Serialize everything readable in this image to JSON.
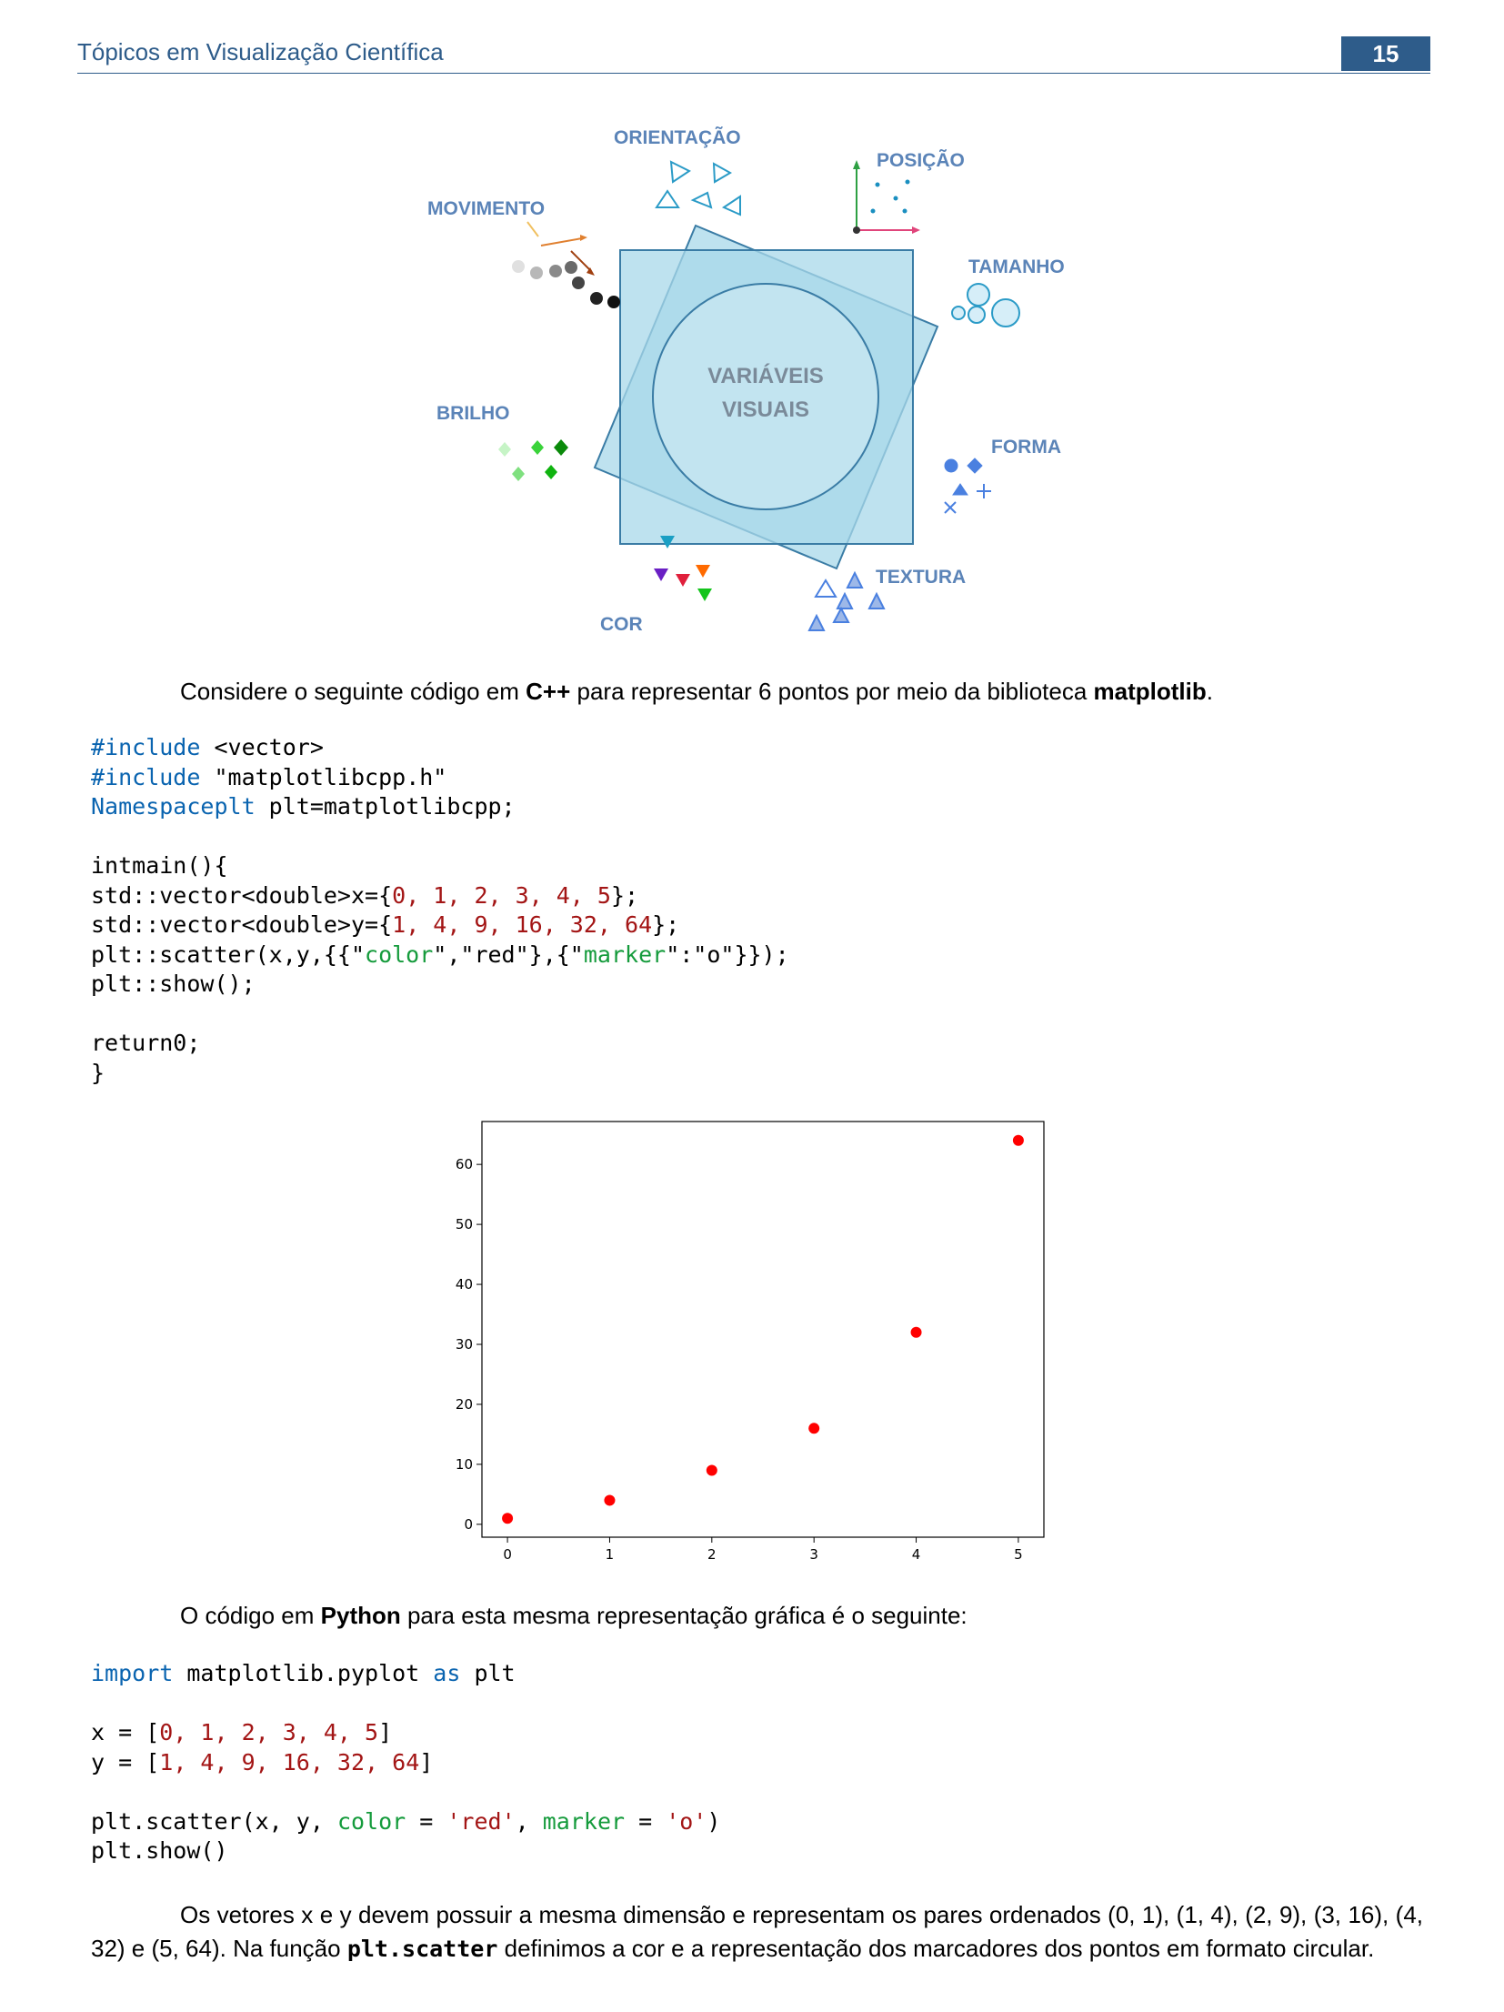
{
  "header": {
    "title": "Tópicos em Visualização Científica",
    "page_number": "15"
  },
  "diagram": {
    "center_label_1": "VARIÁVEIS",
    "center_label_2": "VISUAIS",
    "labels": {
      "orientacao": "ORIENTAÇÃO",
      "posicao": "POSIÇÃO",
      "tamanho": "TAMANHO",
      "forma": "FORMA",
      "textura": "TEXTURA",
      "cor": "COR",
      "brilho": "BRILHO",
      "movimento": "MOVIMENTO"
    }
  },
  "para1": {
    "a": "Considere o seguinte código em ",
    "b": "C++",
    "c": " para representar 6 pontos por meio da biblioteca ",
    "d": "matplotlib",
    "e": "."
  },
  "cpp": {
    "l1a": "#include",
    "l1b": " <vector>",
    "l2a": "#include",
    "l2b": " \"matplotlibcpp.h\"",
    "l3a": "Namespaceplt",
    "l3b": " plt=matplotlibcpp;",
    "l4": "intmain(){",
    "l5a": "std::vector<double>x={",
    "l5b": "0, 1, 2, 3, 4, 5",
    "l5c": "};",
    "l6a": "std::vector<double>y={",
    "l6b": "1, 4, 9, 16, 32, 64",
    "l6c": "};",
    "l7a": "plt::scatter(x,y,{{\"",
    "l7b": "color",
    "l7c": "\",\"red\"},{\"",
    "l7d": "marker",
    "l7e": "\":\"o\"}});",
    "l8": "plt::show();",
    "l9": "return0;",
    "l10": "}"
  },
  "chart_data": {
    "type": "scatter",
    "x": [
      0,
      1,
      2,
      3,
      4,
      5
    ],
    "y": [
      1,
      4,
      9,
      16,
      32,
      64
    ],
    "color": "#ff0000",
    "marker": "o",
    "xticks": [
      "0",
      "1",
      "2",
      "3",
      "4",
      "5"
    ],
    "yticks": [
      "0",
      "10",
      "20",
      "30",
      "40",
      "50",
      "60"
    ],
    "xlim": [
      -0.25,
      5.25
    ],
    "ylim": [
      -2.15,
      67.15
    ],
    "grid": false
  },
  "para2": {
    "a": "O código em ",
    "b": "Python",
    "c": " para esta mesma representação gráfica é o seguinte:"
  },
  "py": {
    "l1a": "import",
    "l1b": " matplotlib.pyplot ",
    "l1c": "as",
    "l1d": " plt",
    "l2a": "x = [",
    "l2b": "0, 1, 2, 3, 4, 5",
    "l2c": "]",
    "l3a": "y = [",
    "l3b": "1, 4, 9, 16, 32, 64",
    "l3c": "]",
    "l4a": "plt.scatter(x, y, ",
    "l4b": "color",
    "l4c": " = ",
    "l4d": "'red'",
    "l4e": ", ",
    "l4f": "marker",
    "l4g": " = ",
    "l4h": "'o'",
    "l4i": ")",
    "l5": "plt.show()"
  },
  "para3": {
    "a": "Os vetores x e y devem possuir a mesma dimensão e representam os pares ordenados (0, 1), (1, 4), (2, 9), (3, 16), (4, 32) e (5, 64). Na função ",
    "b": "plt.scatter",
    "c": " definimos a cor e a representação dos marcadores dos pontos em formato circular."
  }
}
